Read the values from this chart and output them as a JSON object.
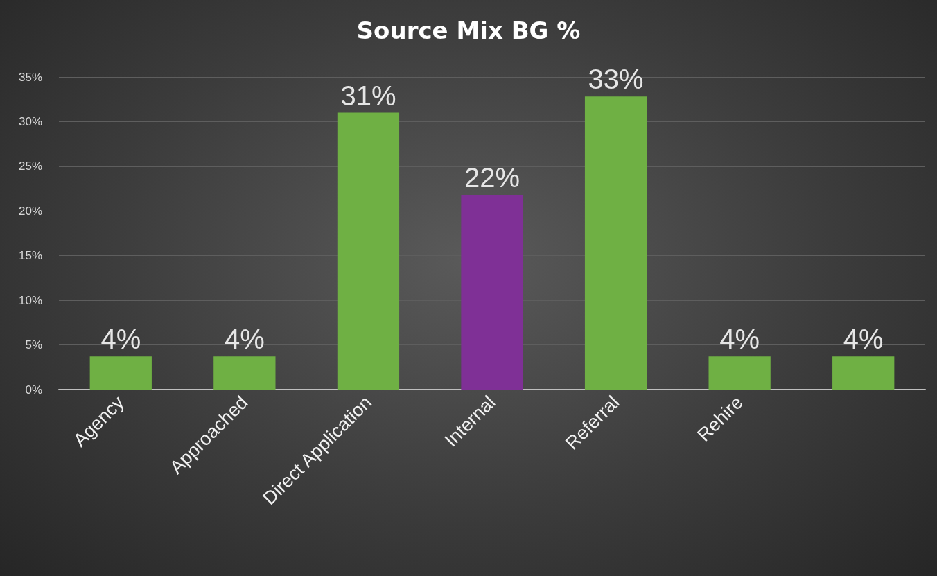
{
  "chart_data": {
    "type": "bar",
    "title": "Source Mix BG %",
    "categories": [
      "Agency",
      "Approached",
      "Direct Application",
      "Internal",
      "Referral",
      "Rehire",
      null
    ],
    "values": [
      3.7,
      3.7,
      31,
      21.8,
      32.8,
      3.7,
      3.7
    ],
    "value_labels": [
      "4%",
      "4%",
      "31%",
      "22%",
      "33%",
      "4%",
      "4%"
    ],
    "colors": [
      "#6fb044",
      "#6fb044",
      "#6fb044",
      "#7f3096",
      "#6fb044",
      "#6fb044",
      "#6fb044"
    ],
    "ylim": [
      0,
      35
    ],
    "yticks": [
      {
        "value": 0,
        "label": "0%"
      },
      {
        "value": 5,
        "label": "5%"
      },
      {
        "value": 10,
        "label": "10%"
      },
      {
        "value": 15,
        "label": "15%"
      },
      {
        "value": 20,
        "label": "20%"
      },
      {
        "value": 25,
        "label": "25%"
      },
      {
        "value": 30,
        "label": "30%"
      },
      {
        "value": 35,
        "label": "35%"
      }
    ],
    "grid": "y"
  }
}
